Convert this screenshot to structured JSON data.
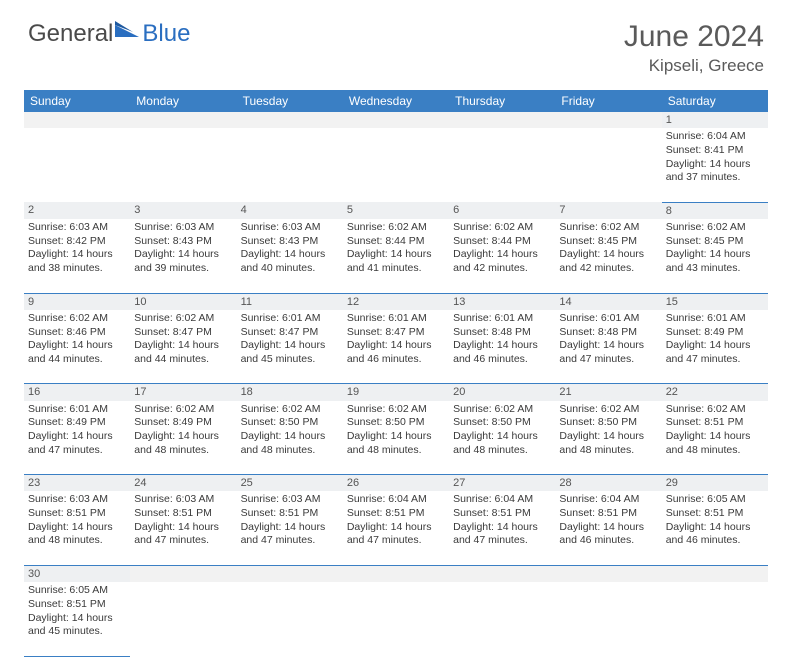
{
  "logo": {
    "text1": "General",
    "text2": "Blue"
  },
  "title": "June 2024",
  "location": "Kipseli, Greece",
  "colors": {
    "header_bg": "#3a7fc4",
    "header_text": "#ffffff",
    "daynum_bg": "#eef0f2",
    "row_border": "#3a7fc4",
    "logo_general": "#4a4a4a",
    "logo_blue": "#2a6ec0",
    "title_color": "#5a5a5a"
  },
  "weekdays": [
    "Sunday",
    "Monday",
    "Tuesday",
    "Wednesday",
    "Thursday",
    "Friday",
    "Saturday"
  ],
  "weeks": [
    {
      "days": [
        null,
        null,
        null,
        null,
        null,
        null,
        {
          "n": "1",
          "sunrise": "Sunrise: 6:04 AM",
          "sunset": "Sunset: 8:41 PM",
          "daylight1": "Daylight: 14 hours",
          "daylight2": "and 37 minutes."
        }
      ]
    },
    {
      "days": [
        {
          "n": "2",
          "sunrise": "Sunrise: 6:03 AM",
          "sunset": "Sunset: 8:42 PM",
          "daylight1": "Daylight: 14 hours",
          "daylight2": "and 38 minutes."
        },
        {
          "n": "3",
          "sunrise": "Sunrise: 6:03 AM",
          "sunset": "Sunset: 8:43 PM",
          "daylight1": "Daylight: 14 hours",
          "daylight2": "and 39 minutes."
        },
        {
          "n": "4",
          "sunrise": "Sunrise: 6:03 AM",
          "sunset": "Sunset: 8:43 PM",
          "daylight1": "Daylight: 14 hours",
          "daylight2": "and 40 minutes."
        },
        {
          "n": "5",
          "sunrise": "Sunrise: 6:02 AM",
          "sunset": "Sunset: 8:44 PM",
          "daylight1": "Daylight: 14 hours",
          "daylight2": "and 41 minutes."
        },
        {
          "n": "6",
          "sunrise": "Sunrise: 6:02 AM",
          "sunset": "Sunset: 8:44 PM",
          "daylight1": "Daylight: 14 hours",
          "daylight2": "and 42 minutes."
        },
        {
          "n": "7",
          "sunrise": "Sunrise: 6:02 AM",
          "sunset": "Sunset: 8:45 PM",
          "daylight1": "Daylight: 14 hours",
          "daylight2": "and 42 minutes."
        },
        {
          "n": "8",
          "sunrise": "Sunrise: 6:02 AM",
          "sunset": "Sunset: 8:45 PM",
          "daylight1": "Daylight: 14 hours",
          "daylight2": "and 43 minutes."
        }
      ]
    },
    {
      "days": [
        {
          "n": "9",
          "sunrise": "Sunrise: 6:02 AM",
          "sunset": "Sunset: 8:46 PM",
          "daylight1": "Daylight: 14 hours",
          "daylight2": "and 44 minutes."
        },
        {
          "n": "10",
          "sunrise": "Sunrise: 6:02 AM",
          "sunset": "Sunset: 8:47 PM",
          "daylight1": "Daylight: 14 hours",
          "daylight2": "and 44 minutes."
        },
        {
          "n": "11",
          "sunrise": "Sunrise: 6:01 AM",
          "sunset": "Sunset: 8:47 PM",
          "daylight1": "Daylight: 14 hours",
          "daylight2": "and 45 minutes."
        },
        {
          "n": "12",
          "sunrise": "Sunrise: 6:01 AM",
          "sunset": "Sunset: 8:47 PM",
          "daylight1": "Daylight: 14 hours",
          "daylight2": "and 46 minutes."
        },
        {
          "n": "13",
          "sunrise": "Sunrise: 6:01 AM",
          "sunset": "Sunset: 8:48 PM",
          "daylight1": "Daylight: 14 hours",
          "daylight2": "and 46 minutes."
        },
        {
          "n": "14",
          "sunrise": "Sunrise: 6:01 AM",
          "sunset": "Sunset: 8:48 PM",
          "daylight1": "Daylight: 14 hours",
          "daylight2": "and 47 minutes."
        },
        {
          "n": "15",
          "sunrise": "Sunrise: 6:01 AM",
          "sunset": "Sunset: 8:49 PM",
          "daylight1": "Daylight: 14 hours",
          "daylight2": "and 47 minutes."
        }
      ]
    },
    {
      "days": [
        {
          "n": "16",
          "sunrise": "Sunrise: 6:01 AM",
          "sunset": "Sunset: 8:49 PM",
          "daylight1": "Daylight: 14 hours",
          "daylight2": "and 47 minutes."
        },
        {
          "n": "17",
          "sunrise": "Sunrise: 6:02 AM",
          "sunset": "Sunset: 8:49 PM",
          "daylight1": "Daylight: 14 hours",
          "daylight2": "and 48 minutes."
        },
        {
          "n": "18",
          "sunrise": "Sunrise: 6:02 AM",
          "sunset": "Sunset: 8:50 PM",
          "daylight1": "Daylight: 14 hours",
          "daylight2": "and 48 minutes."
        },
        {
          "n": "19",
          "sunrise": "Sunrise: 6:02 AM",
          "sunset": "Sunset: 8:50 PM",
          "daylight1": "Daylight: 14 hours",
          "daylight2": "and 48 minutes."
        },
        {
          "n": "20",
          "sunrise": "Sunrise: 6:02 AM",
          "sunset": "Sunset: 8:50 PM",
          "daylight1": "Daylight: 14 hours",
          "daylight2": "and 48 minutes."
        },
        {
          "n": "21",
          "sunrise": "Sunrise: 6:02 AM",
          "sunset": "Sunset: 8:50 PM",
          "daylight1": "Daylight: 14 hours",
          "daylight2": "and 48 minutes."
        },
        {
          "n": "22",
          "sunrise": "Sunrise: 6:02 AM",
          "sunset": "Sunset: 8:51 PM",
          "daylight1": "Daylight: 14 hours",
          "daylight2": "and 48 minutes."
        }
      ]
    },
    {
      "days": [
        {
          "n": "23",
          "sunrise": "Sunrise: 6:03 AM",
          "sunset": "Sunset: 8:51 PM",
          "daylight1": "Daylight: 14 hours",
          "daylight2": "and 48 minutes."
        },
        {
          "n": "24",
          "sunrise": "Sunrise: 6:03 AM",
          "sunset": "Sunset: 8:51 PM",
          "daylight1": "Daylight: 14 hours",
          "daylight2": "and 47 minutes."
        },
        {
          "n": "25",
          "sunrise": "Sunrise: 6:03 AM",
          "sunset": "Sunset: 8:51 PM",
          "daylight1": "Daylight: 14 hours",
          "daylight2": "and 47 minutes."
        },
        {
          "n": "26",
          "sunrise": "Sunrise: 6:04 AM",
          "sunset": "Sunset: 8:51 PM",
          "daylight1": "Daylight: 14 hours",
          "daylight2": "and 47 minutes."
        },
        {
          "n": "27",
          "sunrise": "Sunrise: 6:04 AM",
          "sunset": "Sunset: 8:51 PM",
          "daylight1": "Daylight: 14 hours",
          "daylight2": "and 47 minutes."
        },
        {
          "n": "28",
          "sunrise": "Sunrise: 6:04 AM",
          "sunset": "Sunset: 8:51 PM",
          "daylight1": "Daylight: 14 hours",
          "daylight2": "and 46 minutes."
        },
        {
          "n": "29",
          "sunrise": "Sunrise: 6:05 AM",
          "sunset": "Sunset: 8:51 PM",
          "daylight1": "Daylight: 14 hours",
          "daylight2": "and 46 minutes."
        }
      ]
    },
    {
      "days": [
        {
          "n": "30",
          "sunrise": "Sunrise: 6:05 AM",
          "sunset": "Sunset: 8:51 PM",
          "daylight1": "Daylight: 14 hours",
          "daylight2": "and 45 minutes."
        },
        null,
        null,
        null,
        null,
        null,
        null
      ]
    }
  ]
}
